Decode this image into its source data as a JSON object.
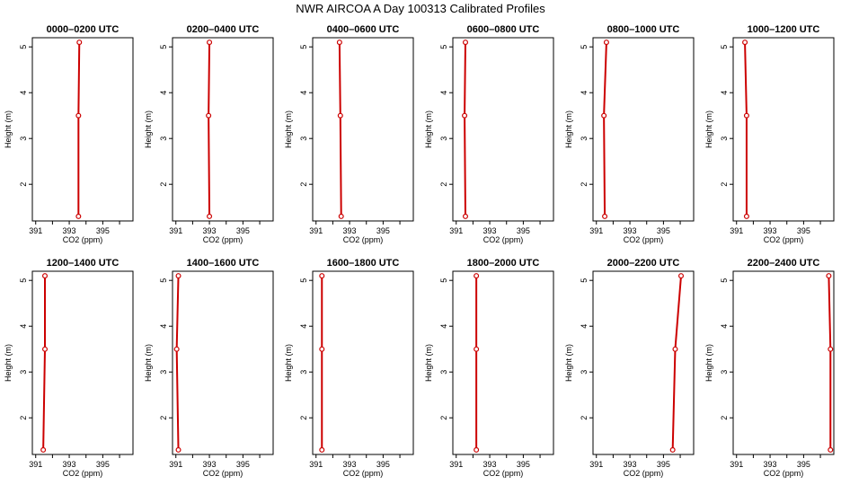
{
  "title": "NWR AIRCOA A  Day 100313  Calibrated Profiles",
  "chart_data": [
    {
      "type": "line",
      "title": "0000–0200 UTC",
      "xlabel": "CO2 (ppm)",
      "ylabel": "Height (m)",
      "xlim": [
        390.8,
        396.8
      ],
      "ylim": [
        1.2,
        5.2
      ],
      "xticks": [
        391,
        392,
        393,
        394,
        395,
        396
      ],
      "xticklabels": [
        "391",
        "",
        "393",
        "",
        "395",
        ""
      ],
      "yticks": [
        2,
        3,
        4,
        5
      ],
      "yticklabels": [
        "2",
        "3",
        "4",
        "5"
      ],
      "x": [
        393.55,
        393.55,
        393.6
      ],
      "y": [
        1.3,
        3.5,
        5.1
      ],
      "color": "#cc0000"
    },
    {
      "type": "line",
      "title": "0200–0400 UTC",
      "xlabel": "CO2 (ppm)",
      "ylabel": "Height (m)",
      "xlim": [
        390.8,
        396.8
      ],
      "ylim": [
        1.2,
        5.2
      ],
      "xticks": [
        391,
        392,
        393,
        394,
        395,
        396
      ],
      "xticklabels": [
        "391",
        "",
        "393",
        "",
        "395",
        ""
      ],
      "yticks": [
        2,
        3,
        4,
        5
      ],
      "yticklabels": [
        "2",
        "3",
        "4",
        "5"
      ],
      "x": [
        393.0,
        392.95,
        393.0
      ],
      "y": [
        1.3,
        3.5,
        5.1
      ],
      "color": "#cc0000"
    },
    {
      "type": "line",
      "title": "0400–0600 UTC",
      "xlabel": "CO2 (ppm)",
      "ylabel": "Height (m)",
      "xlim": [
        390.8,
        396.8
      ],
      "ylim": [
        1.2,
        5.2
      ],
      "xticks": [
        391,
        392,
        393,
        394,
        395,
        396
      ],
      "xticklabels": [
        "391",
        "",
        "393",
        "",
        "395",
        ""
      ],
      "yticks": [
        2,
        3,
        4,
        5
      ],
      "yticklabels": [
        "2",
        "3",
        "4",
        "5"
      ],
      "x": [
        392.5,
        392.45,
        392.4
      ],
      "y": [
        1.3,
        3.5,
        5.1
      ],
      "color": "#cc0000"
    },
    {
      "type": "line",
      "title": "0600–0800 UTC",
      "xlabel": "CO2 (ppm)",
      "ylabel": "Height (m)",
      "xlim": [
        390.8,
        396.8
      ],
      "ylim": [
        1.2,
        5.2
      ],
      "xticks": [
        391,
        392,
        393,
        394,
        395,
        396
      ],
      "xticklabels": [
        "391",
        "",
        "393",
        "",
        "395",
        ""
      ],
      "yticks": [
        2,
        3,
        4,
        5
      ],
      "yticklabels": [
        "2",
        "3",
        "4",
        "5"
      ],
      "x": [
        391.55,
        391.5,
        391.55
      ],
      "y": [
        1.3,
        3.5,
        5.1
      ],
      "color": "#cc0000"
    },
    {
      "type": "line",
      "title": "0800–1000 UTC",
      "xlabel": "CO2 (ppm)",
      "ylabel": "Height (m)",
      "xlim": [
        390.8,
        396.8
      ],
      "ylim": [
        1.2,
        5.2
      ],
      "xticks": [
        391,
        392,
        393,
        394,
        395,
        396
      ],
      "xticklabels": [
        "391",
        "",
        "393",
        "",
        "395",
        ""
      ],
      "yticks": [
        2,
        3,
        4,
        5
      ],
      "yticklabels": [
        "2",
        "3",
        "4",
        "5"
      ],
      "x": [
        391.5,
        391.45,
        391.6
      ],
      "y": [
        1.3,
        3.5,
        5.1
      ],
      "color": "#cc0000"
    },
    {
      "type": "line",
      "title": "1000–1200 UTC",
      "xlabel": "CO2 (ppm)",
      "ylabel": "Height (m)",
      "xlim": [
        390.8,
        396.8
      ],
      "ylim": [
        1.2,
        5.2
      ],
      "xticks": [
        391,
        392,
        393,
        394,
        395,
        396
      ],
      "xticklabels": [
        "391",
        "",
        "393",
        "",
        "395",
        ""
      ],
      "yticks": [
        2,
        3,
        4,
        5
      ],
      "yticklabels": [
        "2",
        "3",
        "4",
        "5"
      ],
      "x": [
        391.6,
        391.6,
        391.5
      ],
      "y": [
        1.3,
        3.5,
        5.1
      ],
      "color": "#cc0000"
    },
    {
      "type": "line",
      "title": "1200–1400 UTC",
      "xlabel": "CO2 (ppm)",
      "ylabel": "Height (m)",
      "xlim": [
        390.8,
        396.8
      ],
      "ylim": [
        1.2,
        5.2
      ],
      "xticks": [
        391,
        392,
        393,
        394,
        395,
        396
      ],
      "xticklabels": [
        "391",
        "",
        "393",
        "",
        "395",
        ""
      ],
      "yticks": [
        2,
        3,
        4,
        5
      ],
      "yticklabels": [
        "2",
        "3",
        "4",
        "5"
      ],
      "x": [
        391.45,
        391.55,
        391.55
      ],
      "y": [
        1.3,
        3.5,
        5.1
      ],
      "color": "#cc0000"
    },
    {
      "type": "line",
      "title": "1400–1600 UTC",
      "xlabel": "CO2 (ppm)",
      "ylabel": "Height (m)",
      "xlim": [
        390.8,
        396.8
      ],
      "ylim": [
        1.2,
        5.2
      ],
      "xticks": [
        391,
        392,
        393,
        394,
        395,
        396
      ],
      "xticklabels": [
        "391",
        "",
        "393",
        "",
        "395",
        ""
      ],
      "yticks": [
        2,
        3,
        4,
        5
      ],
      "yticklabels": [
        "2",
        "3",
        "4",
        "5"
      ],
      "x": [
        391.15,
        391.05,
        391.15
      ],
      "y": [
        1.3,
        3.5,
        5.1
      ],
      "color": "#cc0000"
    },
    {
      "type": "line",
      "title": "1600–1800 UTC",
      "xlabel": "CO2 (ppm)",
      "ylabel": "Height (m)",
      "xlim": [
        390.8,
        396.8
      ],
      "ylim": [
        1.2,
        5.2
      ],
      "xticks": [
        391,
        392,
        393,
        394,
        395,
        396
      ],
      "xticklabels": [
        "391",
        "",
        "393",
        "",
        "395",
        ""
      ],
      "yticks": [
        2,
        3,
        4,
        5
      ],
      "yticklabels": [
        "2",
        "3",
        "4",
        "5"
      ],
      "x": [
        391.35,
        391.35,
        391.35
      ],
      "y": [
        1.3,
        3.5,
        5.1
      ],
      "color": "#cc0000"
    },
    {
      "type": "line",
      "title": "1800–2000 UTC",
      "xlabel": "CO2 (ppm)",
      "ylabel": "Height (m)",
      "xlim": [
        390.8,
        396.8
      ],
      "ylim": [
        1.2,
        5.2
      ],
      "xticks": [
        391,
        392,
        393,
        394,
        395,
        396
      ],
      "xticklabels": [
        "391",
        "",
        "393",
        "",
        "395",
        ""
      ],
      "yticks": [
        2,
        3,
        4,
        5
      ],
      "yticklabels": [
        "2",
        "3",
        "4",
        "5"
      ],
      "x": [
        392.2,
        392.2,
        392.2
      ],
      "y": [
        1.3,
        3.5,
        5.1
      ],
      "color": "#cc0000"
    },
    {
      "type": "line",
      "title": "2000–2200 UTC",
      "xlabel": "CO2 (ppm)",
      "ylabel": "Height (m)",
      "xlim": [
        390.8,
        396.8
      ],
      "ylim": [
        1.2,
        5.2
      ],
      "xticks": [
        391,
        392,
        393,
        394,
        395,
        396
      ],
      "xticklabels": [
        "391",
        "",
        "393",
        "",
        "395",
        ""
      ],
      "yticks": [
        2,
        3,
        4,
        5
      ],
      "yticklabels": [
        "2",
        "3",
        "4",
        "5"
      ],
      "x": [
        395.55,
        395.7,
        396.05
      ],
      "y": [
        1.3,
        3.5,
        5.1
      ],
      "color": "#cc0000"
    },
    {
      "type": "line",
      "title": "2200–2400 UTC",
      "xlabel": "CO2 (ppm)",
      "ylabel": "Height (m)",
      "xlim": [
        390.8,
        396.8
      ],
      "ylim": [
        1.2,
        5.2
      ],
      "xticks": [
        391,
        392,
        393,
        394,
        395,
        396
      ],
      "xticklabels": [
        "391",
        "",
        "393",
        "",
        "395",
        ""
      ],
      "yticks": [
        2,
        3,
        4,
        5
      ],
      "yticklabels": [
        "2",
        "3",
        "4",
        "5"
      ],
      "x": [
        396.6,
        396.6,
        396.5
      ],
      "y": [
        1.3,
        3.5,
        5.1
      ],
      "color": "#cc0000"
    }
  ]
}
